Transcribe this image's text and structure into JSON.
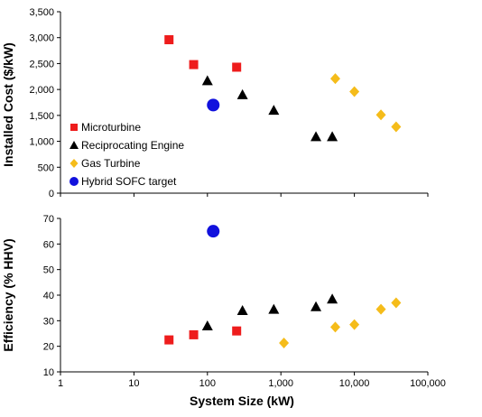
{
  "chart_data": {
    "type": "scatter",
    "x_scale": "log",
    "xlabel": "System Size (kW)",
    "x_ticks": [
      1,
      10,
      100,
      1000,
      10000,
      100000
    ],
    "x_tick_labels": [
      "1",
      "10",
      "100",
      "1,000",
      "10,000",
      "100,000"
    ],
    "xlim": [
      1,
      100000
    ],
    "legend": {
      "placement": "bottom-left of top panel",
      "entries": [
        "Microturbine",
        "Reciprocating Engine",
        "Gas Turbine",
        "Hybrid SOFC target"
      ]
    },
    "colors": {
      "Microturbine": "#ee1c1c",
      "Reciprocating Engine": "#000000",
      "Gas Turbine": "#f5bc1a",
      "Hybrid SOFC target": "#1111dd"
    },
    "panels": [
      {
        "id": "cost",
        "ylabel": "Installed Cost ($/kW)",
        "ylim": [
          0,
          3500
        ],
        "y_ticks": [
          0,
          500,
          1000,
          1500,
          2000,
          2500,
          3000,
          3500
        ],
        "y_tick_labels": [
          "0",
          "500",
          "1,000",
          "1,500",
          "2,000",
          "2,500",
          "3,000",
          "3,500"
        ],
        "series": [
          {
            "name": "Microturbine",
            "marker": "square",
            "points": [
              [
                30,
                2960
              ],
              [
                65,
                2480
              ],
              [
                250,
                2430
              ]
            ]
          },
          {
            "name": "Reciprocating Engine",
            "marker": "triangle",
            "points": [
              [
                100,
                2170
              ],
              [
                300,
                1900
              ],
              [
                800,
                1600
              ],
              [
                3000,
                1090
              ],
              [
                5000,
                1090
              ]
            ]
          },
          {
            "name": "Gas Turbine",
            "marker": "diamond",
            "points": [
              [
                5500,
                2210
              ],
              [
                10000,
                1960
              ],
              [
                23000,
                1510
              ],
              [
                37000,
                1280
              ]
            ]
          },
          {
            "name": "Hybrid SOFC target",
            "marker": "circle",
            "points": [
              [
                120,
                1700
              ]
            ]
          }
        ]
      },
      {
        "id": "efficiency",
        "ylabel": "Efficiency (% HHV)",
        "ylim": [
          10,
          70
        ],
        "y_ticks": [
          10,
          20,
          30,
          40,
          50,
          60,
          70
        ],
        "y_tick_labels": [
          "10",
          "20",
          "30",
          "40",
          "50",
          "60",
          "70"
        ],
        "series": [
          {
            "name": "Microturbine",
            "marker": "square",
            "points": [
              [
                30,
                22.5
              ],
              [
                65,
                24.5
              ],
              [
                250,
                26
              ]
            ]
          },
          {
            "name": "Reciprocating Engine",
            "marker": "triangle",
            "points": [
              [
                100,
                28
              ],
              [
                300,
                34
              ],
              [
                800,
                34.5
              ],
              [
                3000,
                35.5
              ],
              [
                5000,
                38.5
              ]
            ]
          },
          {
            "name": "Gas Turbine",
            "marker": "diamond",
            "points": [
              [
                1100,
                21.3
              ],
              [
                5500,
                27.5
              ],
              [
                10000,
                28.5
              ],
              [
                23000,
                34.5
              ],
              [
                37000,
                37
              ]
            ]
          },
          {
            "name": "Hybrid SOFC target",
            "marker": "circle",
            "points": [
              [
                120,
                65
              ]
            ]
          }
        ]
      }
    ]
  }
}
